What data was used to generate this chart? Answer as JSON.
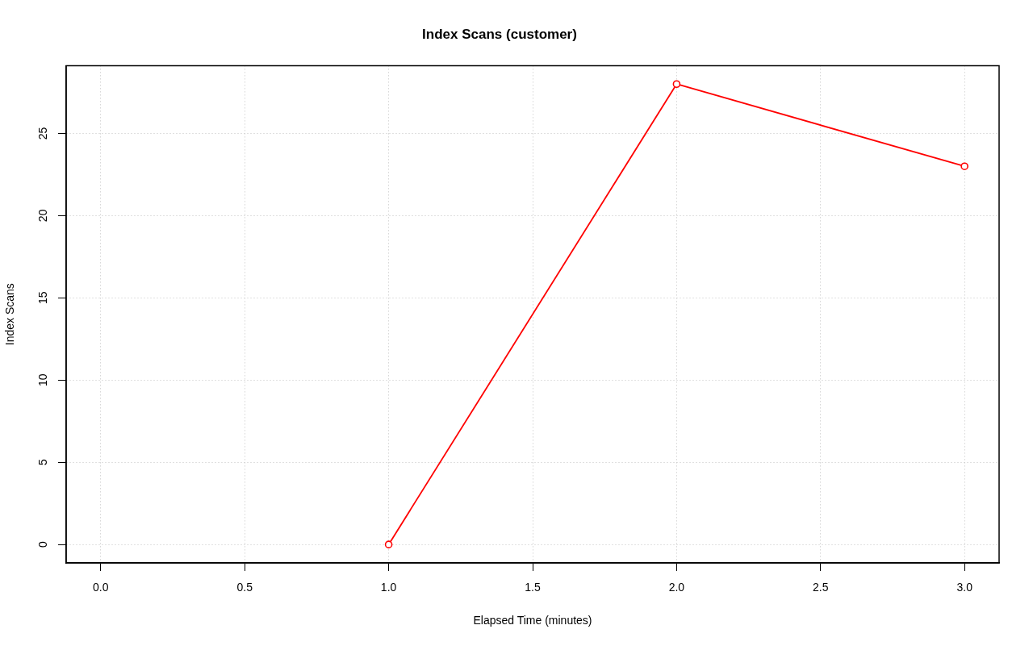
{
  "chart_data": {
    "type": "line",
    "title": "Index Scans (customer)",
    "xlabel": "Elapsed Time (minutes)",
    "ylabel": "Index Scans",
    "x": [
      1,
      2,
      3
    ],
    "series": [
      {
        "color": "#ff0000",
        "values": [
          0,
          28,
          23
        ]
      }
    ],
    "xlim": [
      -0.12,
      3.12
    ],
    "xticks": [
      {
        "value": 0,
        "label": "0.0"
      },
      0.5,
      {
        "value": 1,
        "label": "1.0"
      },
      1.5,
      {
        "value": 2,
        "label": "2.0"
      },
      2.5,
      {
        "value": 3,
        "label": "3.0"
      }
    ],
    "ylim": [
      -1.12,
      29.12
    ],
    "yticks": [
      0,
      5,
      10,
      15,
      20,
      25
    ],
    "grid": true,
    "marker": "circle",
    "line_style": "solid"
  }
}
